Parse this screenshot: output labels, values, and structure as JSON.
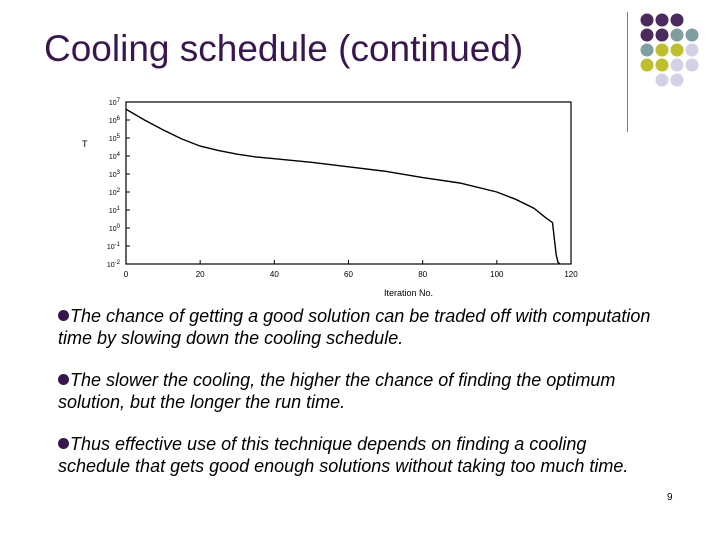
{
  "slide": {
    "title": "Cooling schedule (continued)",
    "page_number": "9"
  },
  "theme": {
    "title_color": "#3a1650",
    "dot_colors": {
      "purple": "#4b2a5e",
      "teal": "#7f9ea0",
      "olive": "#bdbf2c",
      "lavender": "#d4d1e6"
    },
    "dot_grid": [
      [
        "purple",
        "purple",
        "purple",
        "",
        ""
      ],
      [
        "purple",
        "purple",
        "teal",
        "teal",
        ""
      ],
      [
        "teal",
        "olive",
        "olive",
        "lavender",
        ""
      ],
      [
        "olive",
        "olive",
        "lavender",
        "lavender",
        ""
      ],
      [
        "",
        "lavender",
        "lavender",
        "",
        ""
      ]
    ]
  },
  "bullets": [
    "The chance of getting a good solution can be traded off with computation time by slowing down the cooling schedule.",
    "The slower the cooling, the higher the chance of finding the optimum solution, but the longer the run time.",
    "Thus effective use of this technique depends on finding a cooling schedule that gets good enough solutions without taking too much time."
  ],
  "chart_data": {
    "type": "line",
    "xlabel": "Iteration No.",
    "ylabel": "T",
    "xlim": [
      0,
      120
    ],
    "ylim_exp": [
      -2,
      7
    ],
    "log_scale_y": true,
    "x_ticks": [
      0,
      20,
      40,
      60,
      80,
      100,
      120
    ],
    "x_tick_labels": [
      "0",
      "20",
      "40",
      "60",
      "80",
      "100",
      "120"
    ],
    "y_ticks_exp": [
      7,
      6,
      5,
      4,
      3,
      2,
      1,
      0,
      -1,
      -2
    ],
    "y_tick_labels": [
      "10^7",
      "10^6",
      "10^5",
      "10^4",
      "10^3",
      "10^2",
      "10^1",
      "10^0",
      "10^-1",
      "10^-2"
    ],
    "series": [
      {
        "x": [
          0,
          5,
          10,
          15,
          20,
          25,
          30,
          35,
          40,
          50,
          60,
          70,
          80,
          90,
          100,
          105,
          110,
          113,
          115,
          116,
          116.5,
          117
        ],
        "log10_y": [
          6.6,
          6.0,
          5.45,
          4.95,
          4.55,
          4.3,
          4.1,
          3.95,
          3.85,
          3.65,
          3.4,
          3.15,
          2.8,
          2.5,
          2.0,
          1.6,
          1.1,
          0.6,
          0.3,
          -1.5,
          -1.9,
          -2.0
        ]
      }
    ],
    "grid": false
  }
}
